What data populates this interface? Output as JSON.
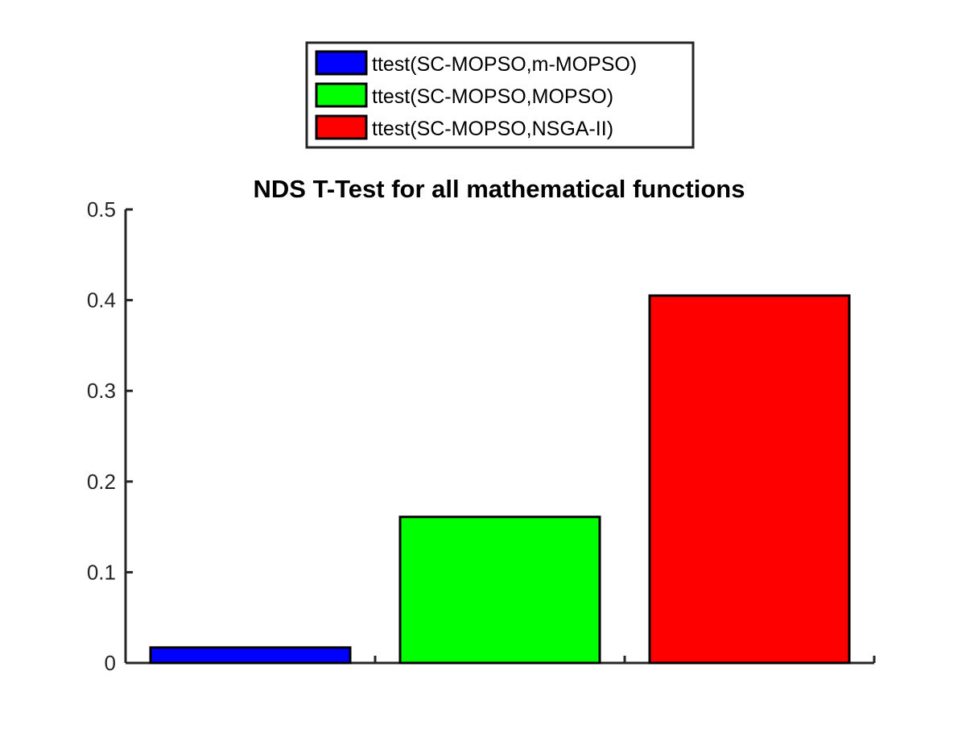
{
  "chart_data": {
    "type": "bar",
    "title": "NDS T-Test for all mathematical functions",
    "xlabel": "",
    "ylabel": "",
    "ylim": [
      0,
      0.5
    ],
    "yticks": [
      0,
      0.1,
      0.2,
      0.3,
      0.4,
      0.5
    ],
    "ytick_labels": [
      "0",
      "0.1",
      "0.2",
      "0.3",
      "0.4",
      "0.5"
    ],
    "grid": false,
    "legend_position": "top-center, outside plot",
    "series": [
      {
        "name": "ttest(SC-MOPSO,m-MOPSO)",
        "value": 0.017,
        "color": "#0000ff"
      },
      {
        "name": "ttest(SC-MOPSO,MOPSO)",
        "value": 0.161,
        "color": "#00ff00"
      },
      {
        "name": "ttest(SC-MOPSO,NSGA-II)",
        "value": 0.405,
        "color": "#ff0000"
      }
    ]
  }
}
